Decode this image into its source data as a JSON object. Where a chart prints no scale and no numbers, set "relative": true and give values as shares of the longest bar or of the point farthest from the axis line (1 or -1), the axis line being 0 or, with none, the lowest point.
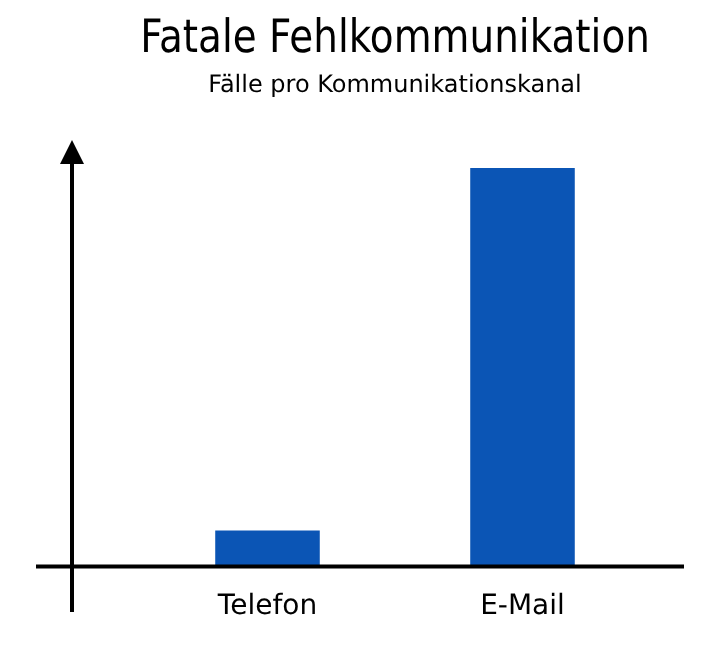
{
  "chart_data": {
    "type": "bar",
    "title": "Fatale Fehlkommunikation",
    "subtitle": "Fälle pro Kommunikationskanal",
    "categories": [
      "Telefon",
      "E-Mail"
    ],
    "values": [
      0.09,
      1
    ],
    "color": "#0b55b5",
    "relative": true
  }
}
